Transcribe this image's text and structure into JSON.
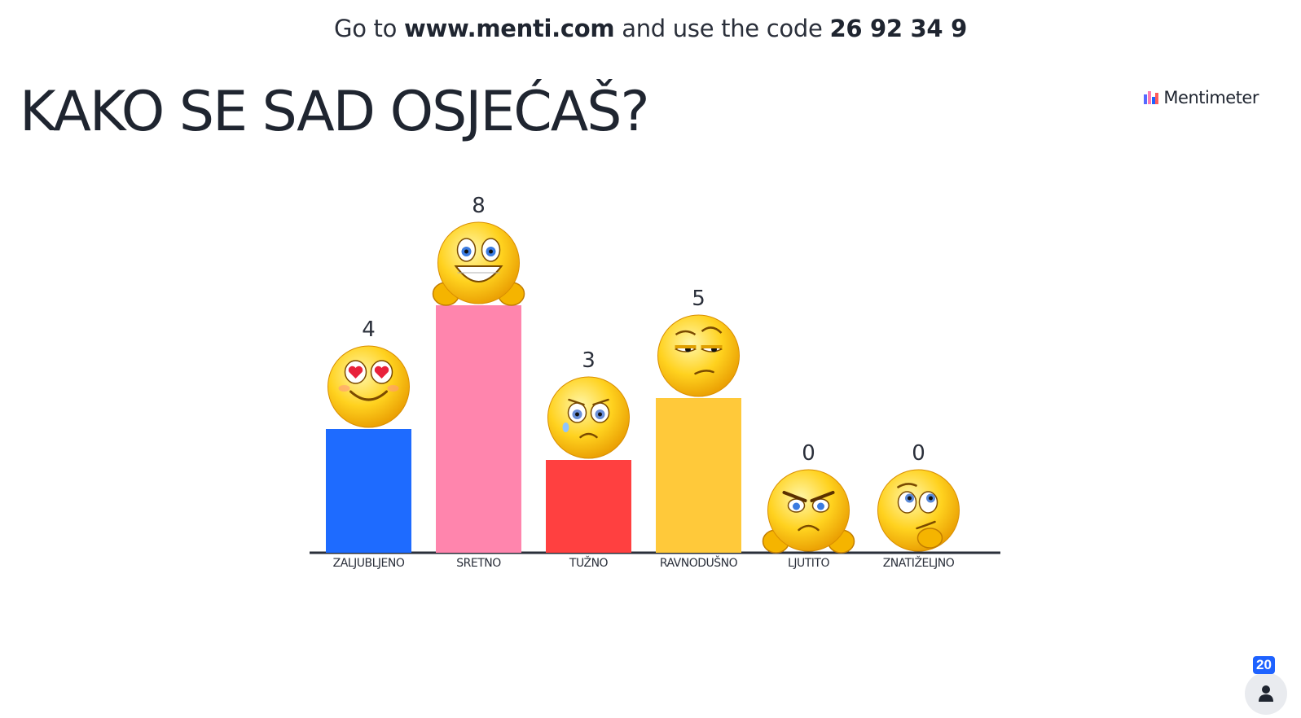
{
  "header": {
    "join_prefix": "Go to ",
    "join_url": "www.menti.com",
    "join_middle": " and use the code ",
    "join_code": "26 92 34 9"
  },
  "title": "KAKO SE SAD OSJEĆAŠ?",
  "brand": {
    "name": "Mentimeter",
    "icon": "mentimeter-logo-icon"
  },
  "participants": {
    "count": "20",
    "icon": "person-icon"
  },
  "chart_data": {
    "type": "bar",
    "categories": [
      "ZALJUBLJENO",
      "SRETNO",
      "TUŽNO",
      "RAVNODUŠNO",
      "LJUTITO",
      "ZNATIŽELJNO"
    ],
    "values": [
      4,
      8,
      3,
      5,
      0,
      0
    ],
    "colors": [
      "#1e6bff",
      "#ff85ad",
      "#ff4040",
      "#ffc93a",
      "#ffc93a",
      "#ffc93a"
    ],
    "icons": [
      "heart-eyes-emoji-icon",
      "big-grin-thumbs-up-emoji-icon",
      "sad-teary-emoji-icon",
      "unimpressed-emoji-icon",
      "angry-thumbs-down-emoji-icon",
      "thinking-emoji-icon"
    ],
    "ylim": [
      0,
      8
    ],
    "grid": false,
    "legend": "none"
  }
}
